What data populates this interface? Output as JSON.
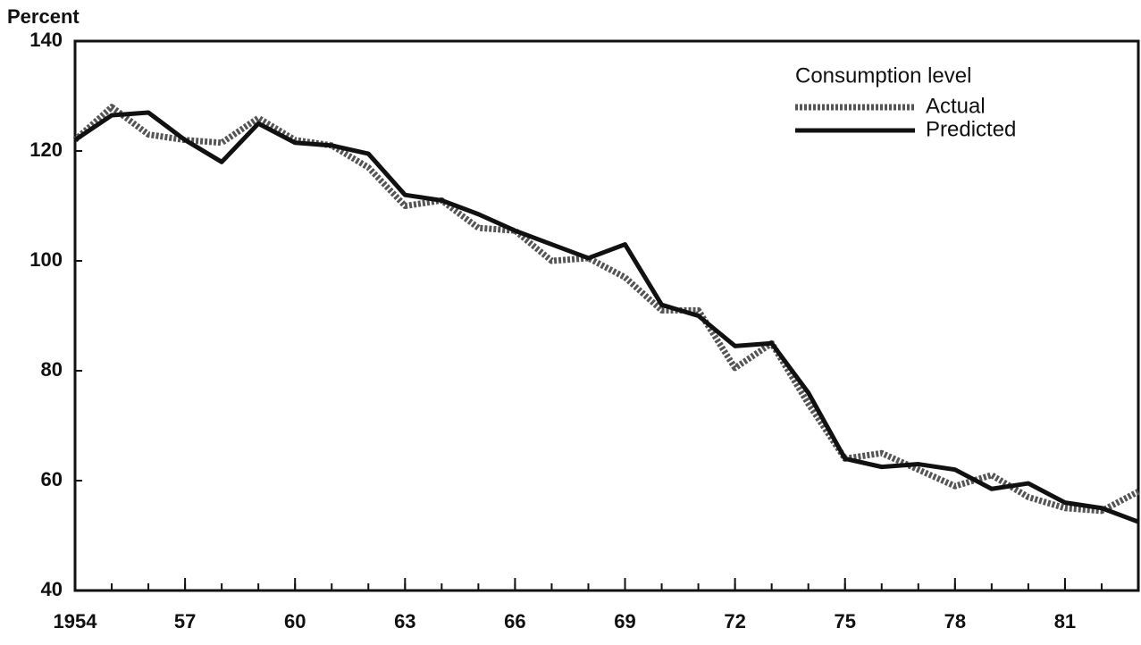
{
  "chart_data": {
    "type": "line",
    "y_label": "Percent",
    "legend_title": "Consumption level",
    "legend_position": "upper right",
    "x": [
      1954,
      1955,
      1956,
      1957,
      1958,
      1959,
      1960,
      1961,
      1962,
      1963,
      1964,
      1965,
      1966,
      1967,
      1968,
      1969,
      1970,
      1971,
      1972,
      1973,
      1974,
      1975,
      1976,
      1977,
      1978,
      1979,
      1980,
      1981,
      1982,
      1983
    ],
    "series": [
      {
        "name": "Actual",
        "color": "#555555",
        "style": "dotted",
        "values": [
          122,
          128,
          123,
          122,
          121.5,
          126,
          122,
          121,
          117,
          110,
          111,
          106,
          105.5,
          100,
          100.5,
          97,
          91,
          91,
          80.5,
          85,
          74,
          64,
          65,
          62,
          59,
          61,
          57,
          55,
          54.5,
          58
        ]
      },
      {
        "name": "Predicted",
        "color": "#111111",
        "style": "solid",
        "values": [
          122,
          126.5,
          127,
          122,
          118,
          125,
          121.5,
          121,
          119.5,
          112,
          111,
          108.5,
          105.5,
          103,
          100.5,
          103,
          92,
          90,
          84.5,
          85,
          76,
          64,
          62.5,
          63,
          62,
          58.5,
          59.5,
          56,
          55,
          52.5
        ]
      }
    ],
    "xlim": [
      1954,
      1983
    ],
    "xticks": [
      {
        "value": 1954,
        "label": "1954"
      },
      {
        "value": 1957,
        "label": "57"
      },
      {
        "value": 1960,
        "label": "60"
      },
      {
        "value": 1963,
        "label": "63"
      },
      {
        "value": 1966,
        "label": "66"
      },
      {
        "value": 1969,
        "label": "69"
      },
      {
        "value": 1972,
        "label": "72"
      },
      {
        "value": 1975,
        "label": "75"
      },
      {
        "value": 1978,
        "label": "78"
      },
      {
        "value": 1981,
        "label": "81"
      }
    ],
    "ylim": [
      40,
      140
    ],
    "yticks": [
      40,
      60,
      80,
      100,
      120,
      140
    ],
    "grid": false
  }
}
